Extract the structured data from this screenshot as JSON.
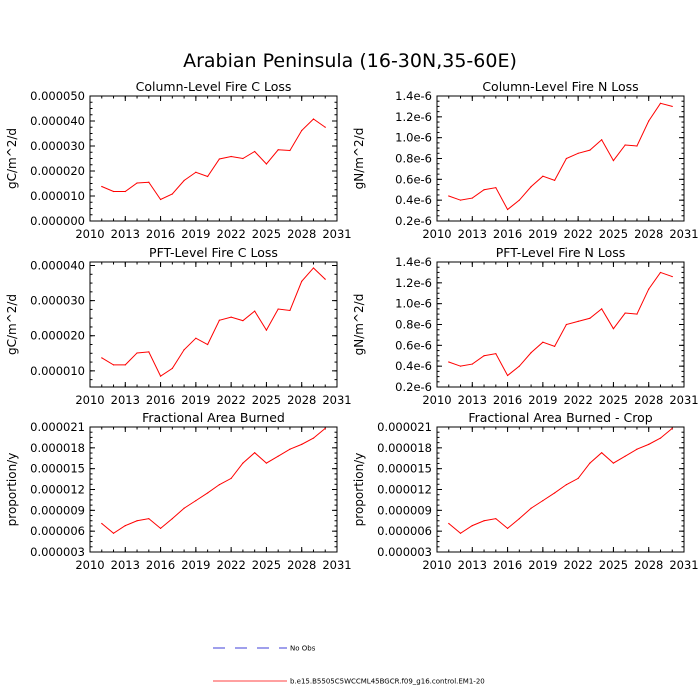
{
  "title": "Arabian Peninsula (16-30N,35-60E)",
  "colors": {
    "series": "#ff0000",
    "obs": "#0000cc",
    "axis": "#000000"
  },
  "legend": {
    "obs_label": "No Obs",
    "model_label": "b.e15.B5505C5WCCML45BGCR.f09_g16.control.EM1-20"
  },
  "chart_data": [
    {
      "type": "line",
      "title": "Column-Level Fire C Loss",
      "xlabel": "",
      "ylabel": "gC/m^2/d",
      "xlim": [
        2010,
        2031
      ],
      "xticks": [
        2010,
        2013,
        2016,
        2019,
        2022,
        2025,
        2028,
        2031
      ],
      "ylim": [
        0,
        5e-05
      ],
      "yticks": [
        0,
        1e-05,
        2e-05,
        3e-05,
        4e-05,
        5e-05
      ],
      "ytick_labels": [
        "0.000000",
        "0.000010",
        "0.000020",
        "0.000030",
        "0.000040",
        "0.000050"
      ],
      "series": [
        {
          "name": "b.e15.B5505C5WCCML45BGCR.f09_g16.control.EM1-20",
          "x": [
            2011,
            2012,
            2013,
            2014,
            2015,
            2016,
            2017,
            2018,
            2019,
            2020,
            2021,
            2022,
            2023,
            2024,
            2025,
            2026,
            2027,
            2028,
            2029,
            2030
          ],
          "values": [
            1.38e-05,
            1.18e-05,
            1.18e-05,
            1.52e-05,
            1.55e-05,
            8.6e-06,
            1.08e-05,
            1.62e-05,
            1.95e-05,
            1.78e-05,
            2.48e-05,
            2.58e-05,
            2.5e-05,
            2.78e-05,
            2.28e-05,
            2.85e-05,
            2.82e-05,
            3.62e-05,
            4.08e-05,
            3.75e-05
          ]
        }
      ]
    },
    {
      "type": "line",
      "title": "Column-Level Fire N Loss",
      "xlabel": "",
      "ylabel": "gN/m^2/d",
      "xlim": [
        2010,
        2031
      ],
      "xticks": [
        2010,
        2013,
        2016,
        2019,
        2022,
        2025,
        2028,
        2031
      ],
      "ylim": [
        2e-07,
        1.4e-06
      ],
      "yticks": [
        2e-07,
        4e-07,
        6e-07,
        8e-07,
        1e-06,
        1.2e-06,
        1.4e-06
      ],
      "ytick_labels": [
        "0.2e-6",
        "0.4e-6",
        "0.6e-6",
        "0.8e-6",
        "1.0e-6",
        "1.2e-6",
        "1.4e-6"
      ],
      "series": [
        {
          "name": "b.e15.B5505C5WCCML45BGCR.f09_g16.control.EM1-20",
          "x": [
            2011,
            2012,
            2013,
            2014,
            2015,
            2016,
            2017,
            2018,
            2019,
            2020,
            2021,
            2022,
            2023,
            2024,
            2025,
            2026,
            2027,
            2028,
            2029,
            2030
          ],
          "values": [
            4.4e-07,
            4e-07,
            4.2e-07,
            5e-07,
            5.2e-07,
            3.1e-07,
            4e-07,
            5.3e-07,
            6.3e-07,
            5.9e-07,
            8e-07,
            8.5e-07,
            8.8e-07,
            9.8e-07,
            7.8e-07,
            9.3e-07,
            9.2e-07,
            1.16e-06,
            1.33e-06,
            1.3e-06
          ]
        }
      ]
    },
    {
      "type": "line",
      "title": "PFT-Level Fire C Loss",
      "xlabel": "",
      "ylabel": "gC/m^2/d",
      "xlim": [
        2010,
        2031
      ],
      "xticks": [
        2010,
        2013,
        2016,
        2019,
        2022,
        2025,
        2028,
        2031
      ],
      "ylim": [
        5.4e-06,
        4.1e-05
      ],
      "yticks": [
        1e-05,
        2e-05,
        3e-05,
        4e-05
      ],
      "ytick_labels": [
        "0.000010",
        "0.000020",
        "0.000030",
        "0.000040"
      ],
      "series": [
        {
          "name": "b.e15.B5505C5WCCML45BGCR.f09_g16.control.EM1-20",
          "x": [
            2011,
            2012,
            2013,
            2014,
            2015,
            2016,
            2017,
            2018,
            2019,
            2020,
            2021,
            2022,
            2023,
            2024,
            2025,
            2026,
            2027,
            2028,
            2029,
            2030
          ],
          "values": [
            1.37e-05,
            1.17e-05,
            1.17e-05,
            1.51e-05,
            1.54e-05,
            8.5e-06,
            1.07e-05,
            1.6e-05,
            1.93e-05,
            1.75e-05,
            2.44e-05,
            2.53e-05,
            2.43e-05,
            2.7e-05,
            2.16e-05,
            2.76e-05,
            2.72e-05,
            3.55e-05,
            3.93e-05,
            3.61e-05
          ]
        }
      ]
    },
    {
      "type": "line",
      "title": "PFT-Level Fire N Loss",
      "xlabel": "",
      "ylabel": "gN/m^2/d",
      "xlim": [
        2010,
        2031
      ],
      "xticks": [
        2010,
        2013,
        2016,
        2019,
        2022,
        2025,
        2028,
        2031
      ],
      "ylim": [
        2e-07,
        1.4e-06
      ],
      "yticks": [
        2e-07,
        4e-07,
        6e-07,
        8e-07,
        1e-06,
        1.2e-06,
        1.4e-06
      ],
      "ytick_labels": [
        "0.2e-6",
        "0.4e-6",
        "0.6e-6",
        "0.8e-6",
        "1.0e-6",
        "1.2e-6",
        "1.4e-6"
      ],
      "series": [
        {
          "name": "b.e15.B5505C5WCCML45BGCR.f09_g16.control.EM1-20",
          "x": [
            2011,
            2012,
            2013,
            2014,
            2015,
            2016,
            2017,
            2018,
            2019,
            2020,
            2021,
            2022,
            2023,
            2024,
            2025,
            2026,
            2027,
            2028,
            2029,
            2030
          ],
          "values": [
            4.4e-07,
            4e-07,
            4.2e-07,
            5e-07,
            5.2e-07,
            3.1e-07,
            4e-07,
            5.3e-07,
            6.3e-07,
            5.9e-07,
            8e-07,
            8.3e-07,
            8.6e-07,
            9.5e-07,
            7.6e-07,
            9.1e-07,
            9e-07,
            1.14e-06,
            1.3e-06,
            1.26e-06
          ]
        }
      ]
    },
    {
      "type": "line",
      "title": "Fractional Area Burned",
      "xlabel": "",
      "ylabel": "proportion/y",
      "xlim": [
        2010,
        2031
      ],
      "xticks": [
        2010,
        2013,
        2016,
        2019,
        2022,
        2025,
        2028,
        2031
      ],
      "ylim": [
        3e-06,
        2.1e-05
      ],
      "yticks": [
        3e-06,
        6e-06,
        9e-06,
        1.2e-05,
        1.5e-05,
        1.8e-05,
        2.1e-05
      ],
      "ytick_labels": [
        "0.000003",
        "0.000006",
        "0.000009",
        "0.000012",
        "0.000015",
        "0.000018",
        "0.000021"
      ],
      "series": [
        {
          "name": "b.e15.B5505C5WCCML45BGCR.f09_g16.control.EM1-20",
          "x": [
            2011,
            2012,
            2013,
            2014,
            2015,
            2016,
            2017,
            2018,
            2019,
            2020,
            2021,
            2022,
            2023,
            2024,
            2025,
            2026,
            2027,
            2028,
            2029,
            2030
          ],
          "values": [
            7.1e-06,
            5.7e-06,
            6.8e-06,
            7.5e-06,
            7.8e-06,
            6.4e-06,
            7.8e-06,
            9.3e-06,
            1.04e-05,
            1.15e-05,
            1.27e-05,
            1.36e-05,
            1.58e-05,
            1.73e-05,
            1.58e-05,
            1.68e-05,
            1.78e-05,
            1.85e-05,
            1.94e-05,
            2.08e-05
          ]
        }
      ]
    },
    {
      "type": "line",
      "title": "Fractional Area Burned - Crop",
      "xlabel": "",
      "ylabel": "proportion/y",
      "xlim": [
        2010,
        2031
      ],
      "xticks": [
        2010,
        2013,
        2016,
        2019,
        2022,
        2025,
        2028,
        2031
      ],
      "ylim": [
        3e-06,
        2.1e-05
      ],
      "yticks": [
        3e-06,
        6e-06,
        9e-06,
        1.2e-05,
        1.5e-05,
        1.8e-05,
        2.1e-05
      ],
      "ytick_labels": [
        "0.000003",
        "0.000006",
        "0.000009",
        "0.000012",
        "0.000015",
        "0.000018",
        "0.000021"
      ],
      "series": [
        {
          "name": "b.e15.B5505C5WCCML45BGCR.f09_g16.control.EM1-20",
          "x": [
            2011,
            2012,
            2013,
            2014,
            2015,
            2016,
            2017,
            2018,
            2019,
            2020,
            2021,
            2022,
            2023,
            2024,
            2025,
            2026,
            2027,
            2028,
            2029,
            2030
          ],
          "values": [
            7.1e-06,
            5.7e-06,
            6.8e-06,
            7.5e-06,
            7.8e-06,
            6.4e-06,
            7.8e-06,
            9.3e-06,
            1.04e-05,
            1.15e-05,
            1.27e-05,
            1.36e-05,
            1.58e-05,
            1.73e-05,
            1.58e-05,
            1.68e-05,
            1.78e-05,
            1.85e-05,
            1.94e-05,
            2.08e-05
          ]
        }
      ]
    }
  ]
}
